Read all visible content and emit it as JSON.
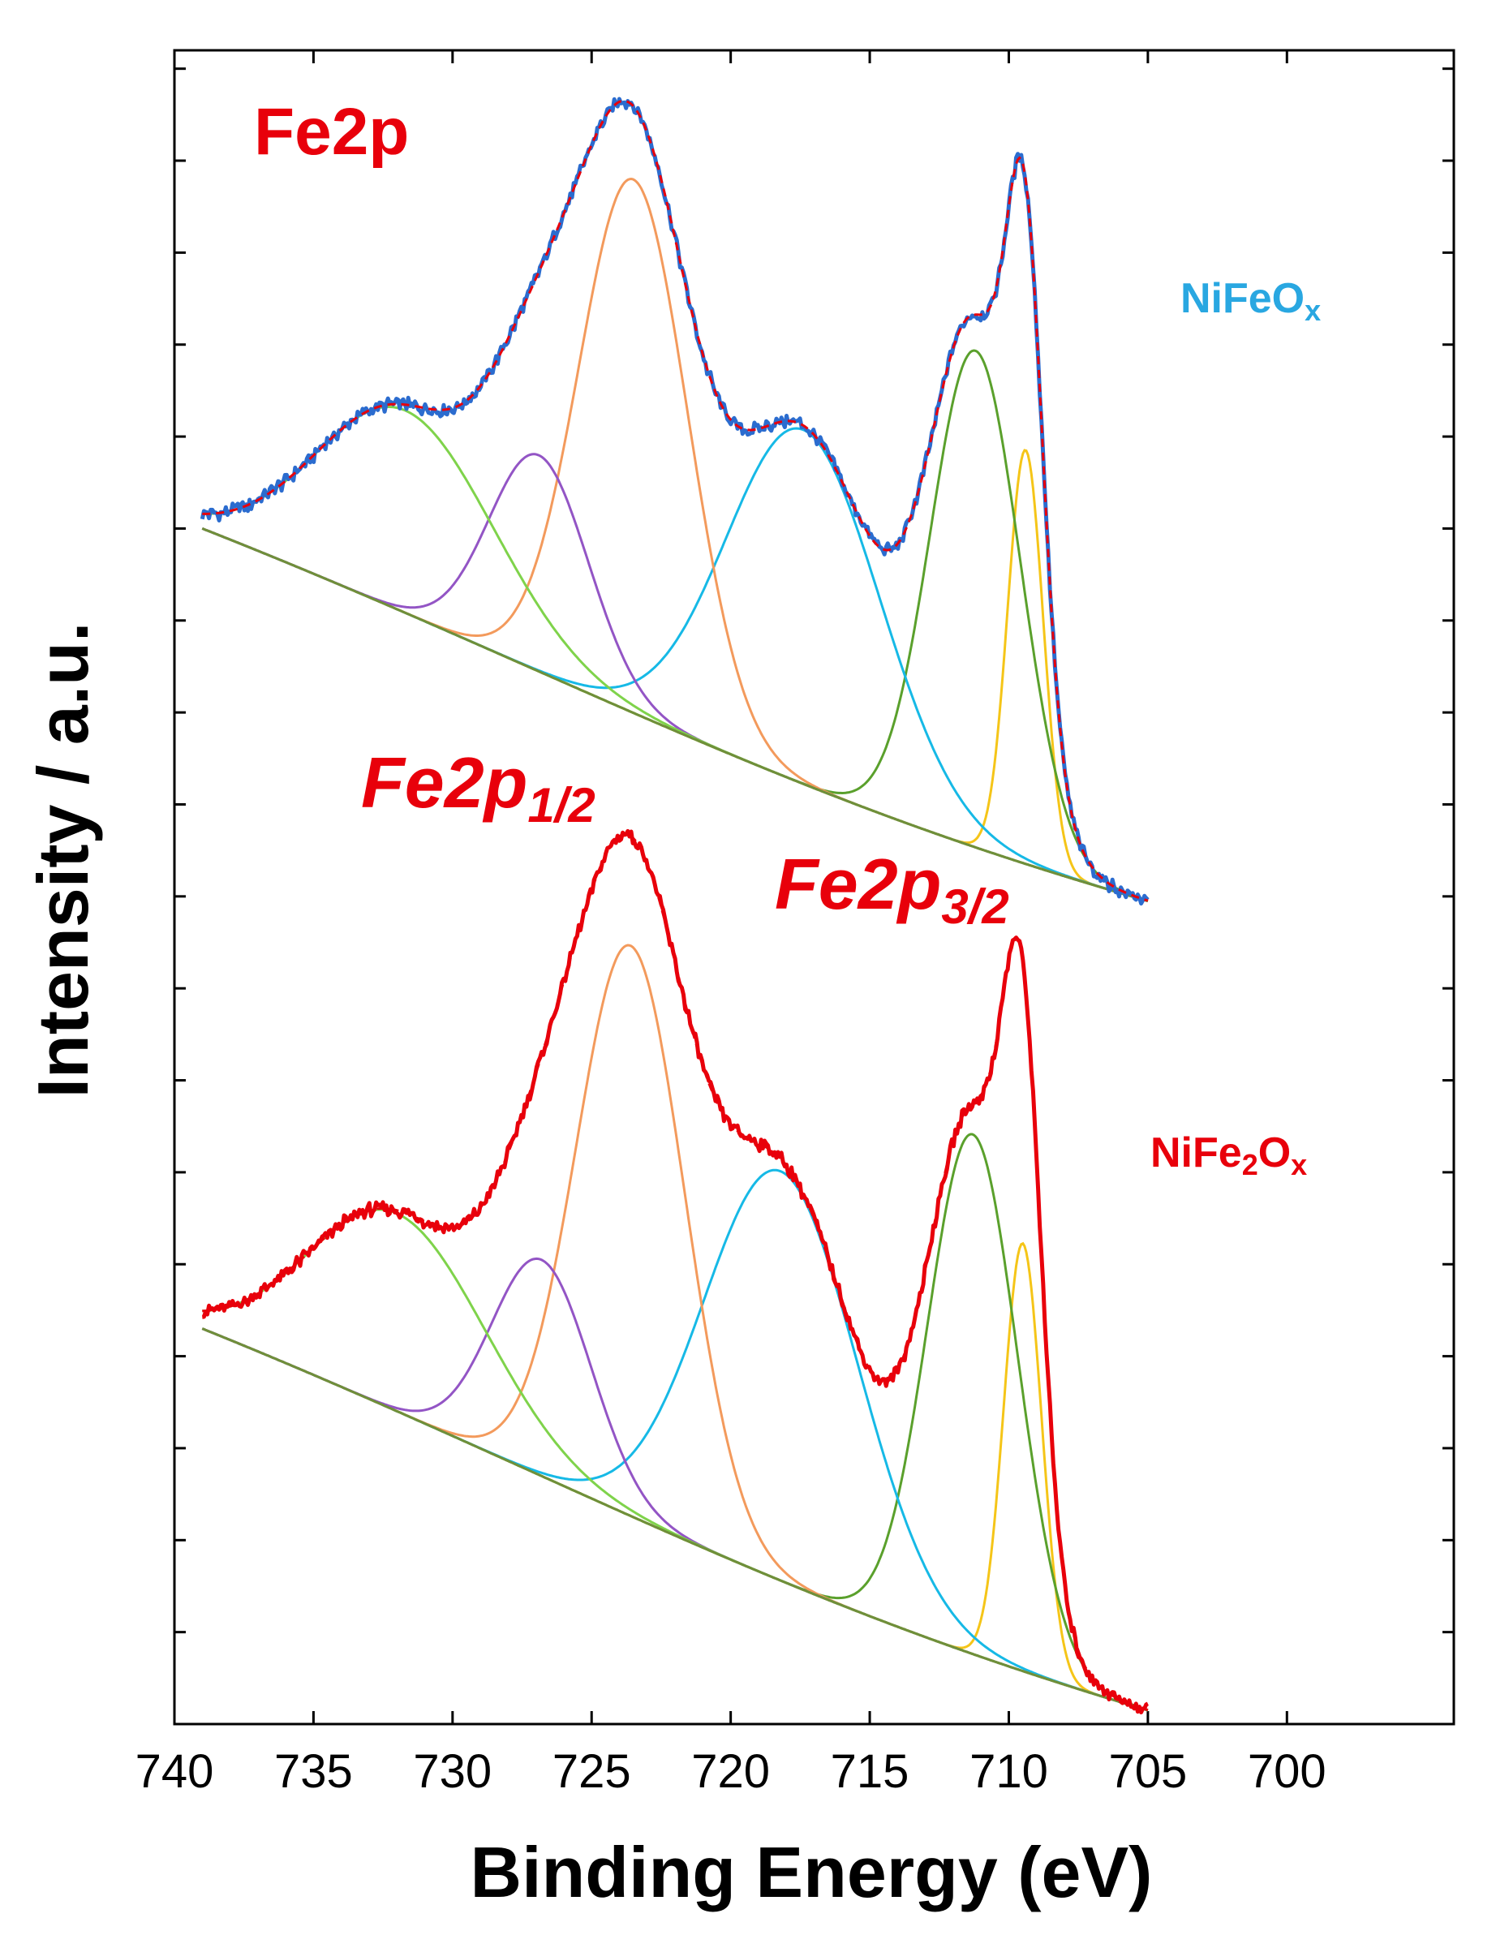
{
  "chart_data": {
    "type": "line",
    "title": "Fe2p",
    "xlabel": "Binding Energy (eV)",
    "ylabel": "Intensity / a.u.",
    "xlim": [
      740,
      694
    ],
    "ylim": [
      0,
      18.2
    ],
    "x_ticks": [
      740,
      735,
      730,
      725,
      720,
      715,
      710,
      705,
      700
    ],
    "x_tick_labels": [
      "740",
      "735",
      "730",
      "725",
      "720",
      "715",
      "710",
      "705",
      "700"
    ],
    "y_tick_labels": "none",
    "legend": "none",
    "annotations": [
      {
        "text": "Fe2p",
        "sub": "",
        "color": "#e8000b",
        "style": "bold"
      },
      {
        "text": "Fe2p",
        "sub": "1/2",
        "color": "#e8000b",
        "style": "bold-italic"
      },
      {
        "text": "Fe2p",
        "sub": "3/2",
        "color": "#e8000b",
        "style": "bold-italic"
      }
    ],
    "spectra": [
      {
        "name": "NiFeOx",
        "label_main": "NiFeO",
        "label_sub": "x",
        "label_color": "#29a7e1",
        "data_color": "#2b6ccf",
        "fit_color": "#e8000b",
        "range": [
          739,
          705
        ],
        "baseline": {
          "start": 13.0,
          "end": 8.95,
          "bend_at": 712.8
        },
        "components": [
          {
            "name": "peak-709.4",
            "center": 709.4,
            "height": 4.5,
            "fwhm": 1.5,
            "color": "#f5c518"
          },
          {
            "name": "peak-711.2",
            "center": 711.2,
            "height": 5.4,
            "fwhm": 3.8,
            "color": "#5aa02c"
          },
          {
            "name": "peak-717.4",
            "center": 717.4,
            "height": 3.85,
            "fwhm": 6.5,
            "color": "#16b9e6"
          },
          {
            "name": "peak-723.5",
            "center": 723.5,
            "height": 5.8,
            "fwhm": 4.6,
            "color": "#f39a5c"
          },
          {
            "name": "peak-726.9",
            "center": 726.9,
            "height": 2.35,
            "fwhm": 4.2,
            "color": "#9355c5"
          },
          {
            "name": "peak-731.7",
            "center": 731.7,
            "height": 2.2,
            "fwhm": 7.5,
            "color": "#7fd34b"
          }
        ]
      },
      {
        "name": "NiFe2Ox",
        "label_main": "NiFe",
        "label_mid": "2",
        "label_tail": "O",
        "label_sub": "x",
        "label_color": "#e8000b",
        "data_color": "#e8000b",
        "fit_color": "#e8000b",
        "range": [
          739,
          705
        ],
        "baseline": {
          "start": 4.3,
          "end": 0.15,
          "bend_at": 712.8
        },
        "components": [
          {
            "name": "peak-709.5",
            "center": 709.5,
            "height": 4.65,
            "fwhm": 1.6,
            "color": "#f5c518"
          },
          {
            "name": "peak-711.3",
            "center": 711.3,
            "height": 5.65,
            "fwhm": 3.8,
            "color": "#5aa02c"
          },
          {
            "name": "peak-718.2",
            "center": 718.2,
            "height": 4.45,
            "fwhm": 6.5,
            "color": "#16b9e6"
          },
          {
            "name": "peak-723.6",
            "center": 723.6,
            "height": 6.2,
            "fwhm": 4.6,
            "color": "#f39a5c"
          },
          {
            "name": "peak-726.8",
            "center": 726.8,
            "height": 2.35,
            "fwhm": 4.2,
            "color": "#9355c5"
          },
          {
            "name": "peak-732.0",
            "center": 732.0,
            "height": 2.15,
            "fwhm": 7.5,
            "color": "#7fd34b"
          }
        ]
      }
    ]
  }
}
